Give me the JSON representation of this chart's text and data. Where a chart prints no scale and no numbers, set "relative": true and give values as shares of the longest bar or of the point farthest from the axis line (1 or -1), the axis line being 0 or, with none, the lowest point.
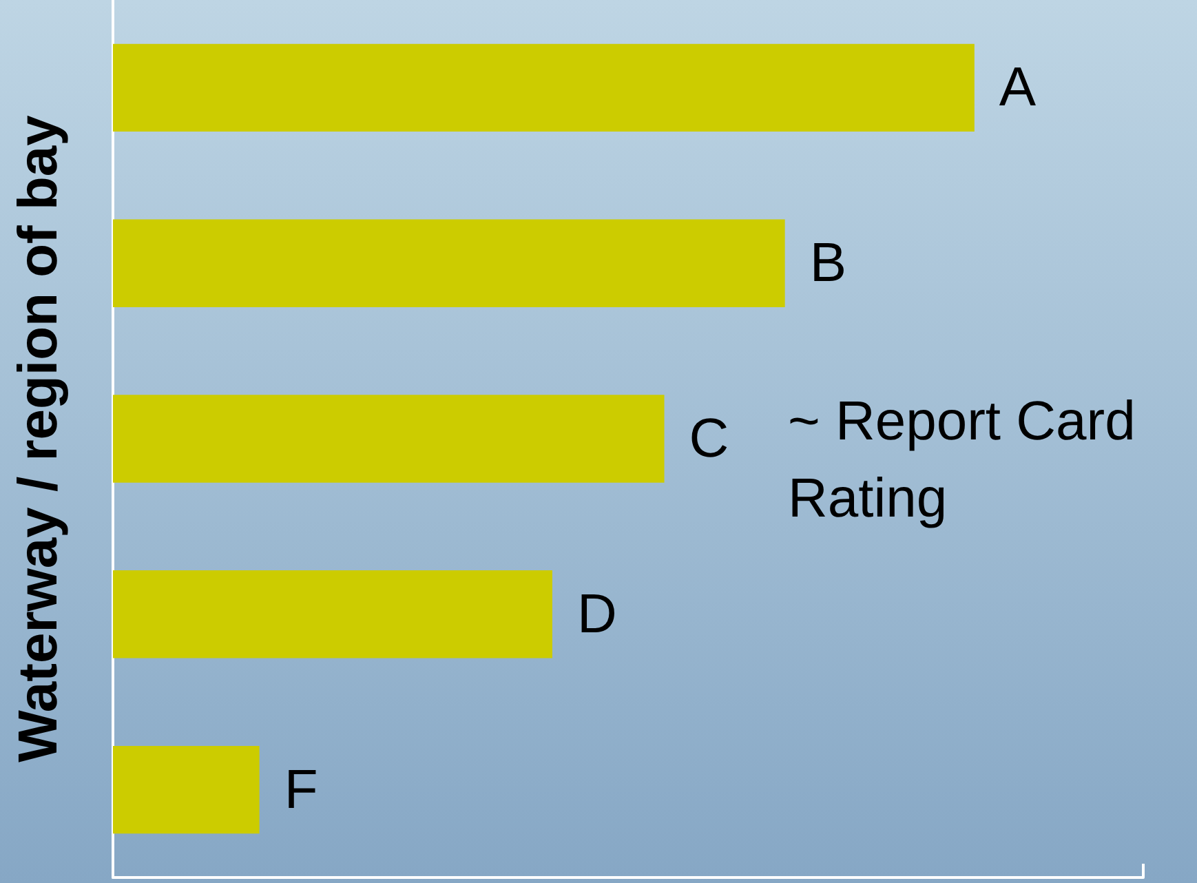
{
  "chart_data": {
    "type": "bar",
    "orientation": "horizontal",
    "relative": true,
    "ylabel": "Waterway / region of bay",
    "categories": [
      "A",
      "B",
      "C",
      "D",
      "F"
    ],
    "values": [
      1,
      0.78,
      0.64,
      0.51,
      0.17
    ],
    "color": "#cccc00",
    "annotations": [
      "~ Report Card Rating"
    ],
    "tick_labels": false
  }
}
